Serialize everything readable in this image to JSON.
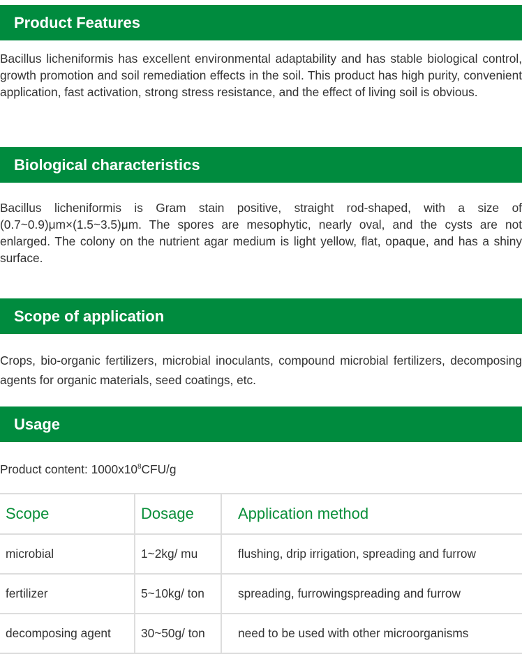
{
  "sections": [
    {
      "title": "Product Features",
      "body": "Bacillus licheniformis has excellent environmental adaptability and has stable biological control, growth promotion and soil remediation effects in the soil. This product has high purity, convenient application, fast activation, strong stress resistance, and the effect of living soil is obvious."
    },
    {
      "title": "Biological characteristics",
      "body": "Bacillus licheniformis is Gram stain positive, straight rod-shaped, with a size of (0.7~0.9)μm×(1.5~3.5)μm. The spores are mesophytic, nearly oval, and the cysts are not enlarged. The colony on the nutrient agar medium is light yellow, flat, opaque, and has a shiny surface."
    },
    {
      "title": "Scope of application",
      "body": "Crops, bio-organic fertilizers, microbial inoculants, compound microbial fertilizers, decomposing agents for organic materials, seed coatings, etc."
    },
    {
      "title": "Usage"
    }
  ],
  "usage": {
    "content_label": "Product content: 1000x10",
    "content_exp": "8",
    "content_unit": "CFU/g",
    "headers": [
      "Scope",
      "Dosage",
      "Application method"
    ],
    "rows": [
      [
        "microbial",
        "1~2kg/ mu",
        "flushing, drip irrigation, spreading and furrow"
      ],
      [
        "fertilizer",
        "5~10kg/ ton",
        "spreading, furrowingspreading and furrow"
      ],
      [
        "decomposing agent",
        "30~50g/ ton",
        "need to be used with other microorganisms"
      ]
    ]
  },
  "colors": {
    "header_bg": "#008b3e",
    "table_header_text": "#0a8f3a"
  }
}
